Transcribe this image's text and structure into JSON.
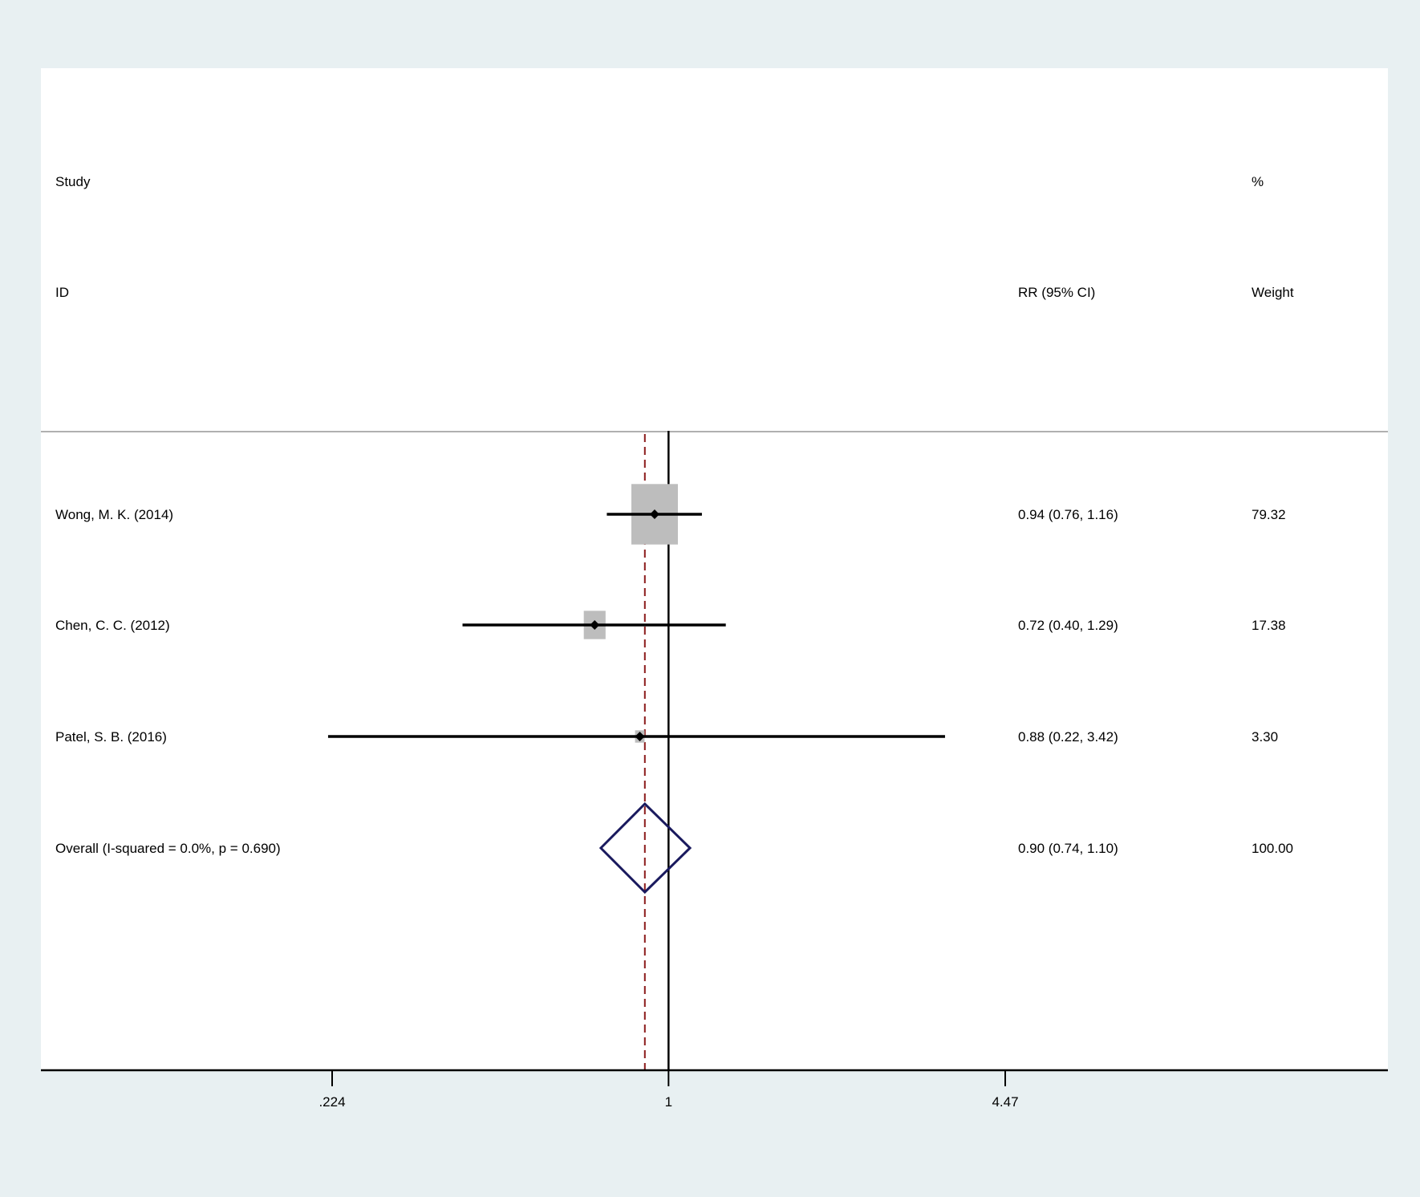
{
  "chart_data": {
    "type": "forest",
    "headers": {
      "study_line1": "Study",
      "study_line2": "ID",
      "effect": "RR (95% CI)",
      "weight_line1": "%",
      "weight_line2": "Weight"
    },
    "studies": [
      {
        "label": "Wong, M. K. (2014)",
        "rr": 0.94,
        "ci_low": 0.76,
        "ci_high": 1.16,
        "effect_text": "0.94 (0.76, 1.16)",
        "weight": 79.32,
        "weight_text": "79.32"
      },
      {
        "label": "Chen, C. C. (2012)",
        "rr": 0.72,
        "ci_low": 0.4,
        "ci_high": 1.29,
        "effect_text": "0.72 (0.40, 1.29)",
        "weight": 17.38,
        "weight_text": "17.38"
      },
      {
        "label": "Patel, S. B. (2016)",
        "rr": 0.88,
        "ci_low": 0.22,
        "ci_high": 3.42,
        "effect_text": "0.88 (0.22, 3.42)",
        "weight": 3.3,
        "weight_text": "3.30"
      }
    ],
    "overall": {
      "label": "Overall  (I-squared = 0.0%, p = 0.690)",
      "rr": 0.9,
      "ci_low": 0.74,
      "ci_high": 1.1,
      "effect_text": "0.90 (0.74, 1.10)",
      "weight_text": "100.00"
    },
    "x_axis": {
      "scale": "log",
      "range": [
        0.224,
        4.47
      ],
      "ticks": [
        0.224,
        1,
        4.47
      ],
      "tick_labels": [
        ".224",
        "1",
        "4.47"
      ],
      "null_line": 1
    },
    "colors": {
      "outer_background": "#e8f0f2",
      "plot_background": "#ffffff",
      "weight_box": "#bdbdbd",
      "overall_diamond": "#1a1a5e",
      "overall_line": "#8b1a1a",
      "ci_line": "#000000"
    }
  }
}
